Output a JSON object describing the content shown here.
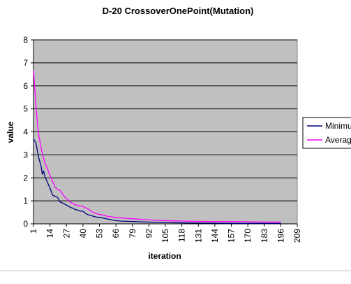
{
  "chart_data": {
    "type": "line",
    "title": "D-20 CrossoverOnePoint(Mutation)",
    "xlabel": "iteration",
    "ylabel": "value",
    "ylim": [
      0,
      8
    ],
    "xlim": [
      1,
      209
    ],
    "x_ticks": [
      1,
      14,
      27,
      40,
      53,
      66,
      79,
      92,
      105,
      118,
      131,
      144,
      157,
      170,
      183,
      196,
      209
    ],
    "y_ticks": [
      0,
      1,
      2,
      3,
      4,
      5,
      6,
      7,
      8
    ],
    "grid": true,
    "legend_position": "right",
    "plot_background": "#c0c0c0",
    "series": [
      {
        "name": "Minimum",
        "color": "#000080",
        "x": [
          1,
          3,
          5,
          7,
          8,
          9,
          10,
          12,
          14,
          16,
          18,
          20,
          22,
          24,
          26,
          28,
          30,
          32,
          34,
          36,
          38,
          40,
          42,
          44,
          47,
          50,
          53,
          56,
          60,
          65,
          70,
          80,
          90,
          100,
          110,
          120,
          140,
          160,
          180,
          196
        ],
        "values": [
          3.7,
          3.5,
          2.9,
          2.5,
          2.15,
          2.3,
          2.05,
          1.8,
          1.55,
          1.25,
          1.2,
          1.15,
          0.95,
          0.9,
          0.85,
          0.78,
          0.72,
          0.68,
          0.62,
          0.6,
          0.55,
          0.55,
          0.45,
          0.4,
          0.35,
          0.3,
          0.28,
          0.25,
          0.2,
          0.15,
          0.12,
          0.1,
          0.08,
          0.06,
          0.05,
          0.04,
          0.03,
          0.02,
          0.02,
          0.02
        ]
      },
      {
        "name": "Average",
        "color": "#ff00ff",
        "x": [
          1,
          2,
          3,
          4,
          5,
          6,
          7,
          8,
          10,
          12,
          14,
          16,
          18,
          20,
          22,
          24,
          26,
          28,
          30,
          33,
          36,
          40,
          44,
          48,
          52,
          56,
          60,
          66,
          72,
          80,
          90,
          100,
          110,
          120,
          140,
          160,
          180,
          196
        ],
        "values": [
          6.7,
          5.9,
          5.1,
          4.4,
          3.9,
          3.6,
          3.3,
          3.05,
          2.65,
          2.4,
          2.1,
          1.85,
          1.6,
          1.5,
          1.45,
          1.3,
          1.15,
          1.05,
          0.95,
          0.85,
          0.8,
          0.75,
          0.65,
          0.5,
          0.42,
          0.38,
          0.32,
          0.28,
          0.25,
          0.22,
          0.18,
          0.15,
          0.13,
          0.12,
          0.1,
          0.1,
          0.08,
          0.08
        ]
      }
    ]
  }
}
